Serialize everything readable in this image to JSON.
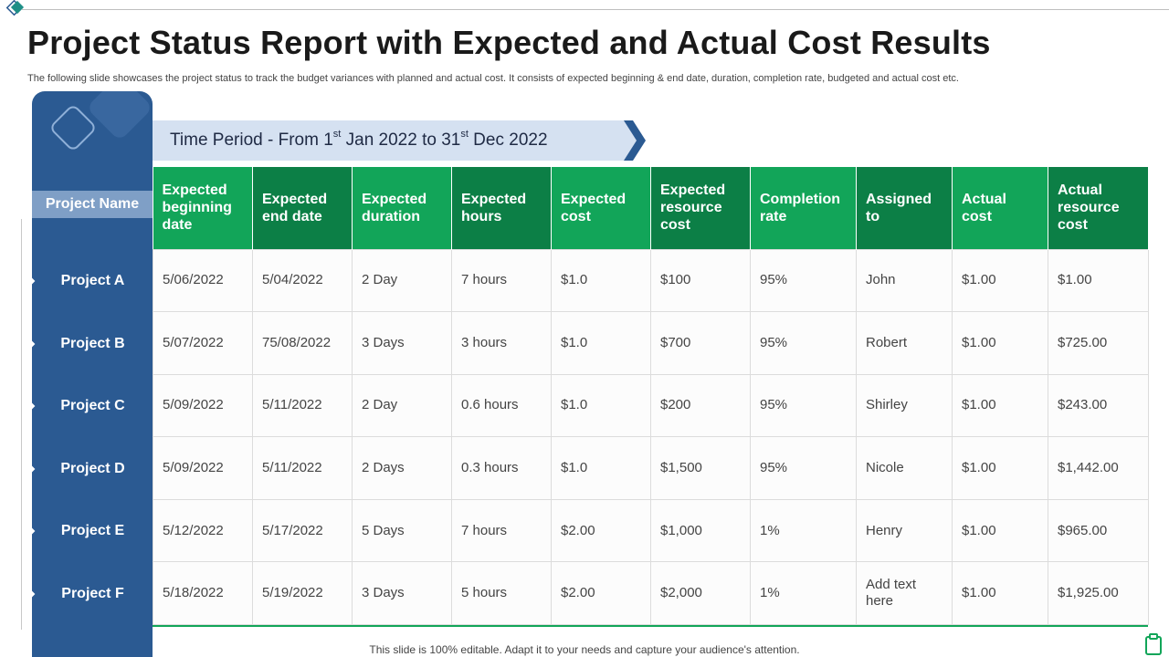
{
  "title": "Project Status Report with Expected and Actual Cost Results",
  "subtitle": "The following slide showcases the project status to track the budget variances with planned and actual cost. It consists of expected beginning & end date, duration, completion rate, budgeted and actual cost etc.",
  "period": {
    "prefix": "Time Period  - From 1",
    "sup1": "st",
    "middle": " Jan 2022 to 31",
    "sup2": "st",
    "suffix": " Dec 2022"
  },
  "project_name_header": "Project Name",
  "columns": [
    "Expected beginning date",
    "Expected end date",
    "Expected duration",
    "Expected hours",
    "Expected cost",
    "Expected resource cost",
    "Completion rate",
    "Assigned to",
    "Actual cost",
    "Actual resource cost"
  ],
  "rows": [
    {
      "name": "Project A",
      "cells": [
        "5/06/2022",
        "5/04/2022",
        "2 Day",
        "7 hours",
        "$1.0",
        "$100",
        "95%",
        "John",
        "$1.00",
        "$1.00"
      ]
    },
    {
      "name": "Project B",
      "cells": [
        "5/07/2022",
        "75/08/2022",
        "3 Days",
        "3 hours",
        "$1.0",
        "$700",
        "95%",
        "Robert",
        "$1.00",
        "$725.00"
      ]
    },
    {
      "name": "Project C",
      "cells": [
        "5/09/2022",
        "5/11/2022",
        "2 Day",
        "0.6 hours",
        "$1.0",
        "$200",
        "95%",
        "Shirley",
        "$1.00",
        "$243.00"
      ]
    },
    {
      "name": "Project D",
      "cells": [
        "5/09/2022",
        "5/11/2022",
        "2 Days",
        "0.3 hours",
        "$1.0",
        "$1,500",
        "95%",
        "Nicole",
        "$1.00",
        "$1,442.00"
      ]
    },
    {
      "name": "Project E",
      "cells": [
        "5/12/2022",
        "5/17/2022",
        "5 Days",
        "7 hours",
        "$2.00",
        "$1,000",
        "1%",
        "Henry",
        "$1.00",
        "$965.00"
      ]
    },
    {
      "name": "Project F",
      "cells": [
        "5/18/2022",
        "5/19/2022",
        "3 Days",
        "5 hours",
        "$2.00",
        "$2,000",
        "1%",
        "Add text here",
        "$1.00",
        "$1,925.00"
      ]
    }
  ],
  "footer": "This slide is 100% editable. Adapt it to your needs and capture your audience's attention.",
  "colors": {
    "sidebar": "#2b5a92",
    "header_green_light": "#12a559",
    "header_green_dark": "#0c7f46",
    "period_banner": "#d5e1f1",
    "period_chevron": "#2b5a92"
  },
  "icons": [
    "diamond-logo-icon",
    "arrow-bullet-icon",
    "clipboard-icon"
  ]
}
